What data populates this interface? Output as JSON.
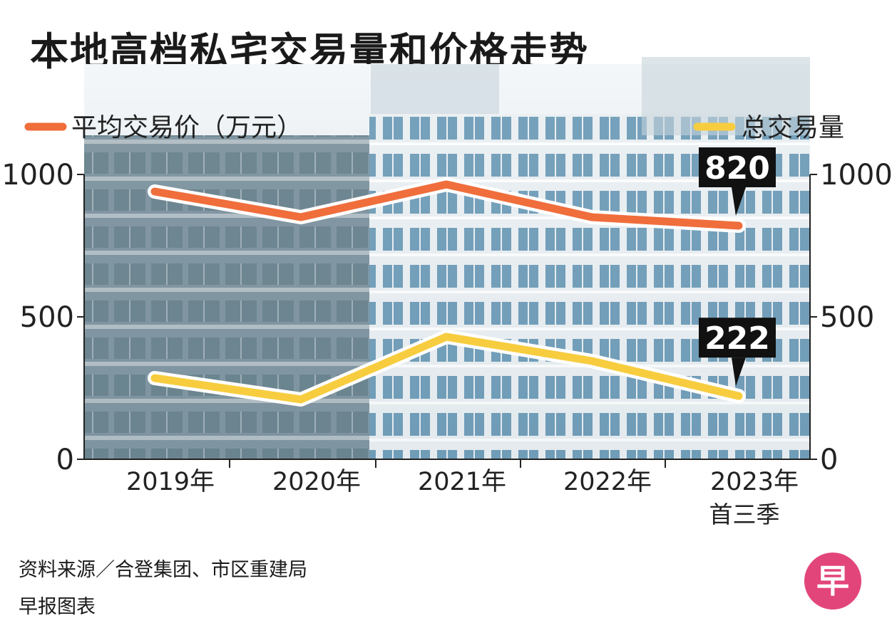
{
  "title": "本地高档私宅交易量和价格走势",
  "source": "资料来源／合登集团、市区重建局",
  "credit": "早报图表",
  "logo_text": "早",
  "colors": {
    "price": "#f06e3c",
    "volume": "#f7cd3f",
    "callout": "#111111",
    "sky": "#d8e4ec",
    "building": "#7c95a3"
  },
  "chart_data": {
    "type": "line",
    "categories": [
      "2019年",
      "2020年",
      "2021年",
      "2022年",
      "2023年"
    ],
    "category_sublabels": [
      "",
      "",
      "",
      "",
      "首三季"
    ],
    "y_left": {
      "ylim": [
        0,
        1000
      ],
      "ticks": [
        "0",
        "500",
        "1000"
      ]
    },
    "y_right": {
      "ylim": [
        0,
        1000
      ],
      "ticks": [
        "0",
        "500",
        "1000"
      ]
    },
    "grid": false,
    "series": [
      {
        "name": "平均交易价（万元）",
        "color": "#f06e3c",
        "values": [
          940,
          850,
          965,
          850,
          820
        ],
        "end_label": "820"
      },
      {
        "name": "总交易量",
        "color": "#f7cd3f",
        "values": [
          285,
          210,
          430,
          345,
          222
        ],
        "end_label": "222"
      }
    ],
    "legend": {
      "left": "平均交易价（万元）",
      "right": "总交易量"
    }
  }
}
